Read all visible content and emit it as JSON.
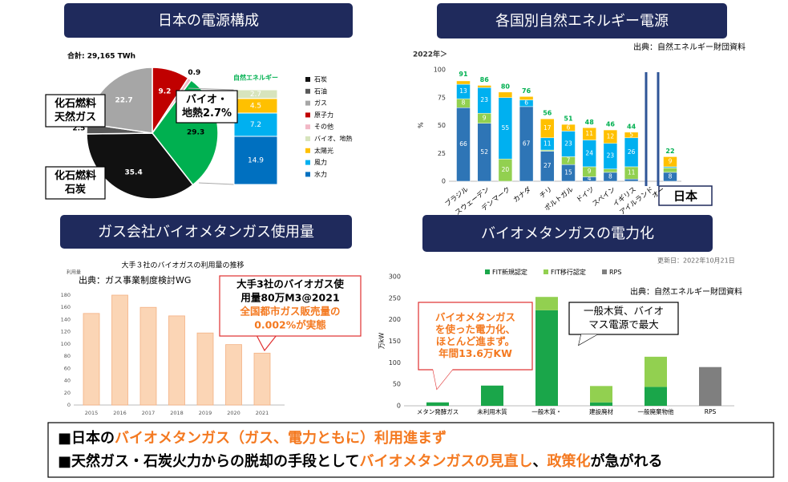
{
  "chart_data": [
    {
      "type": "pie",
      "title": "日本の電源構成",
      "subtitle": "合計: 29,165 TWh",
      "values": [
        9.2,
        0.9,
        29.3,
        35.4,
        2.5,
        22.7
      ],
      "colors": [
        "#c00000",
        "#f2b8c6",
        "#00b050",
        "#111111",
        "#595959",
        "#a6a6a6"
      ],
      "legend": [
        {
          "name": "石炭",
          "color": "#111111"
        },
        {
          "name": "石油",
          "color": "#595959"
        },
        {
          "name": "ガス",
          "color": "#a6a6a6"
        },
        {
          "name": "原子力",
          "color": "#c00000"
        },
        {
          "name": "その他",
          "color": "#f2b8c6"
        },
        {
          "name": "バイオ、地熱",
          "color": "#d7e4bd"
        },
        {
          "name": "太陽光",
          "color": "#ffc000"
        },
        {
          "name": "風力",
          "color": "#00b0f0"
        },
        {
          "name": "水力",
          "color": "#0070c0"
        }
      ],
      "breakdown": {
        "title": "自然エネルギー",
        "values": [
          2.7,
          4.5,
          7.2,
          14.9
        ],
        "colors": [
          "#d7e4bd",
          "#ffc000",
          "#00b0f0",
          "#0070c0"
        ]
      },
      "annotations": [
        {
          "lines": [
            "化石燃料",
            "天然ガス"
          ]
        },
        {
          "lines": [
            "化石燃料",
            "石炭"
          ]
        },
        {
          "lines": [
            "バイオ・",
            "地熱2.7%"
          ]
        }
      ]
    },
    {
      "type": "stacked_bar",
      "title": "各国別自然エネルギー電源",
      "source": "出典：自然エネルギー財団資料",
      "subtitle": "2022年＞",
      "ylabel": "%",
      "categories": [
        "ブラジル",
        "スウェーデン",
        "デンマーク",
        "カナダ",
        "チリ",
        "ポルトガル",
        "ドイツ",
        "スペイン",
        "イギリス",
        "日本"
      ],
      "extra_labels": [
        "アイルランド",
        "オー"
      ],
      "totals": [
        91,
        86,
        80,
        76,
        56,
        51,
        48,
        46,
        44,
        22
      ],
      "totals_color": "#00b050",
      "series": [
        {
          "color": "#2e75b6",
          "values": [
            66,
            52,
            0,
            67,
            27,
            15,
            4,
            8,
            2,
            8
          ],
          "value_labels": [
            "66",
            "52",
            null,
            "67",
            "27",
            "15",
            "4",
            "8",
            null,
            "8"
          ]
        },
        {
          "color": "#92d050",
          "values": [
            8,
            9,
            20,
            0,
            1,
            7,
            9,
            3,
            11,
            4
          ],
          "value_labels": [
            "8",
            "9",
            "20",
            null,
            null,
            "7",
            "9",
            null,
            "11",
            null
          ]
        },
        {
          "color": "#00b0f0",
          "values": [
            13,
            23,
            55,
            6,
            11,
            23,
            24,
            23,
            26,
            1
          ],
          "value_labels": [
            "13",
            "23",
            "55",
            "6",
            "11",
            "23",
            "24",
            "23",
            "26",
            null
          ]
        },
        {
          "color": "#ffc000",
          "values": [
            3,
            2,
            5,
            3,
            17,
            6,
            11,
            12,
            5,
            9
          ],
          "value_labels": [
            null,
            null,
            null,
            null,
            "17",
            "6",
            "11",
            "12",
            "5",
            "9"
          ]
        }
      ],
      "ylim": [
        0,
        100
      ],
      "yticks": [
        0,
        25,
        50,
        75,
        100
      ],
      "grid": false
    },
    {
      "type": "bar",
      "title": "ガス会社バイオメタンガス使用量",
      "subtitle": "大手３社のバイオガスの利用量の推移",
      "source": "出典：ガス事業制度検討WG",
      "ylabel": "利用量",
      "categories": [
        "2015",
        "2016",
        "2017",
        "2018",
        "2019",
        "2020",
        "2021"
      ],
      "values": [
        150,
        180,
        160,
        146,
        118,
        99,
        85
      ],
      "color": "#fbd5b5",
      "ylim": [
        0,
        180
      ],
      "yticks": [
        0,
        20,
        40,
        60,
        80,
        100,
        120,
        140,
        160,
        180
      ],
      "grid": false,
      "annotations": [
        {
          "lines": [
            "大手3社のバイオガス使",
            "用量80万M3@2021"
          ],
          "color": "#000000"
        },
        {
          "lines": [
            "全国都市ガス販売量の",
            "0.002%が実態"
          ],
          "color": "#f47920"
        }
      ]
    },
    {
      "type": "stacked_bar",
      "title": "バイオメタンガスの電力化",
      "date": "更新日：2022年10月21日",
      "source": "出典：自然エネルギー財団資料",
      "ylabel": "万kW",
      "categories": [
        "メタン発酵ガス",
        "未利用木質",
        "一般木質・",
        "建設廃材",
        "一般廃棄物他",
        "RPS"
      ],
      "series": [
        {
          "name": "FIT新規認定",
          "color": "#1aa64a",
          "values": [
            8,
            47,
            222,
            8,
            44,
            0
          ]
        },
        {
          "name": "FIT移行認定",
          "color": "#92d050",
          "values": [
            0,
            0,
            31,
            38,
            70,
            0
          ]
        },
        {
          "name": "RPS",
          "color": "#7f7f7f",
          "values": [
            0,
            0,
            0,
            0,
            0,
            90
          ]
        }
      ],
      "ylim": [
        0,
        300
      ],
      "yticks": [
        0,
        50,
        100,
        150,
        200,
        250,
        300
      ],
      "grid": false,
      "annotations": [
        {
          "lines": [
            "バイオメタンガス",
            "を使った電力化、",
            "ほとんど進まず。",
            "年間13.6万KW"
          ],
          "color": "#f47920"
        },
        {
          "lines": [
            "一般木質、バイオ",
            "マス電源で最大"
          ],
          "color": "#000000"
        }
      ]
    }
  ],
  "summary": {
    "lines": [
      [
        {
          "text": "■日本の",
          "color": "#000000"
        },
        {
          "text": "バイオメタンガス（ガス、電力ともに）利用進まず",
          "color": "#f47920"
        }
      ],
      [
        {
          "text": "■天然ガス・石炭火力からの脱却の手段として",
          "color": "#000000"
        },
        {
          "text": "バイオメタンガスの見直し",
          "color": "#f47920"
        },
        {
          "text": "、",
          "color": "#000000"
        },
        {
          "text": "政策化",
          "color": "#f47920"
        },
        {
          "text": "が急がれる",
          "color": "#000000"
        }
      ]
    ]
  }
}
